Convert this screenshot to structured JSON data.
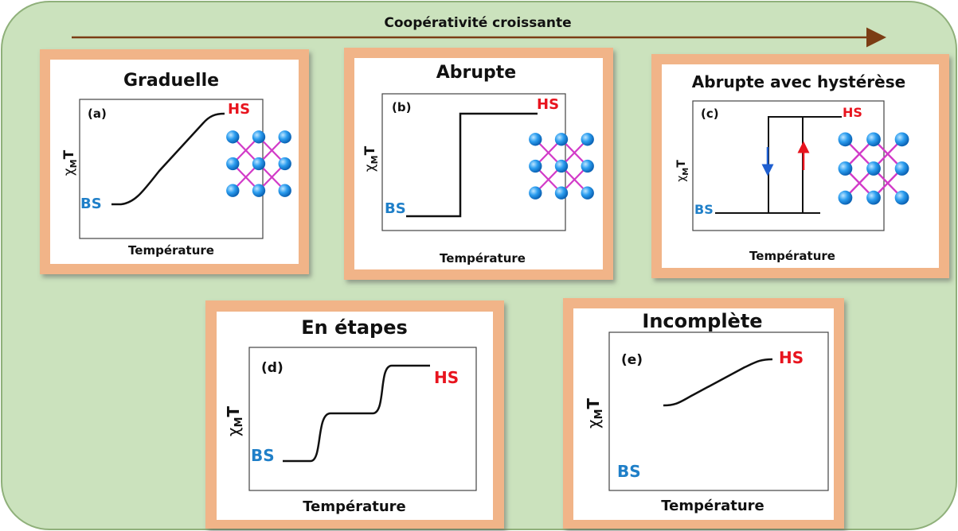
{
  "header": {
    "title": "Coopérativité croissante"
  },
  "panels": [
    {
      "title": "Graduelle",
      "tag": "(a)",
      "high": "HS",
      "low": "BS",
      "y_label": {
        "symbol": "χ",
        "subscript": "M",
        "suffix": "T"
      },
      "x_label": "Température"
    },
    {
      "title": "Abrupte",
      "tag": "(b)",
      "high": "HS",
      "low": "BS",
      "y_label": {
        "symbol": "χ",
        "subscript": "M",
        "suffix": "T"
      },
      "x_label": "Température"
    },
    {
      "title": "Abrupte avec hystérèse",
      "tag": "(c)",
      "high": "HS",
      "low": "BS",
      "y_label": {
        "symbol": "χ",
        "subscript": "M",
        "suffix": "T"
      },
      "x_label": "Température"
    },
    {
      "title": "En étapes",
      "tag": "(d)",
      "high": "HS",
      "low": "BS",
      "y_label": {
        "symbol": "χ",
        "subscript": "M",
        "suffix": "T"
      },
      "x_label": "Température"
    },
    {
      "title": "Incomplète",
      "tag": "(e)",
      "high": "HS",
      "low": "BS",
      "y_label": {
        "symbol": "χ",
        "subscript": "M",
        "suffix": "T"
      },
      "x_label": "Température"
    }
  ]
}
